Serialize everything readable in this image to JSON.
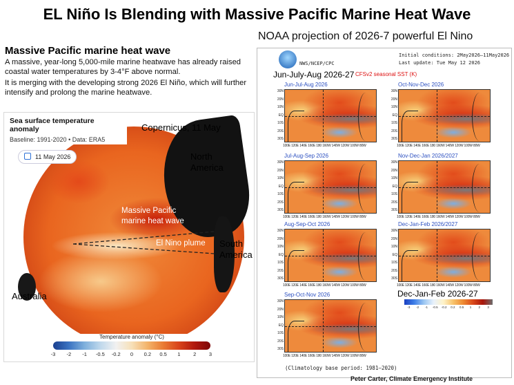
{
  "title": "EL Niño Is Blending  with Massive Pacific Marine Heat Wave",
  "noaa_heading": "NOAA projection of 2026-7 powerful  El Nino",
  "left": {
    "heading": "Massive Pacific marine heat wave",
    "para1": "A massive, year-long 5,000-mile  marine heatwave has already raised coastal water temperatures by 3-4°F above normal.",
    "para2": "It is merging with the developing strong 2026 El Niño, which will further intensify and prolong the marine heatwave."
  },
  "copernicus": {
    "legend_title": "Sea surface temperature anomaly",
    "legend_sub": "Baseline: 1991-2020 • Data: ERA5",
    "date_chip": "11 May 2026",
    "source_label": "Copernicus, 11 May",
    "labels": {
      "north_america": "North\nAmerica",
      "massive_pacific": "Massive Pacific\nmarine heat wave",
      "plume": "El Nino plume",
      "south_america": "South\nAmerica",
      "australia": "Australia"
    },
    "colorbar": {
      "title": "Temperature anomaly (°C)",
      "ticks": [
        "-3",
        "-2",
        "-1",
        "-0.5",
        "-0.2",
        "0",
        "0.2",
        "0.5",
        "1",
        "2",
        "3"
      ]
    }
  },
  "noaa": {
    "org": "NWS/NCEP/CPC",
    "initial_conditions": "Initial conditions: 2May2026–11May2026",
    "last_update": "Last update: Tue May 12 2026",
    "main_season": "Jun-July-Aug  2026-27",
    "model_label": "CFSv2 seasonal SST (K)",
    "y_ticks": [
      "30N",
      "20N",
      "10N",
      "EQ",
      "10S",
      "20S",
      "30S"
    ],
    "x_ticks": "100E 120E 140E 160E 180 160W 140W 120W 100W 80W",
    "maps": [
      {
        "title": "Jun-Jul-Aug 2026"
      },
      {
        "title": "Oct-Nov-Dec 2026"
      },
      {
        "title": "Jul-Aug-Sep 2026"
      },
      {
        "title": "Nov-Dec-Jan 2026/2027"
      },
      {
        "title": "Aug-Sep-Oct 2026"
      },
      {
        "title": "Dec-Jan-Feb 2026/2027"
      },
      {
        "title": "Sep-Oct-Nov 2026"
      }
    ],
    "djf_label": "Dec-Jan-Feb 2026-27",
    "cbar_ticks": [
      "-3",
      "-2",
      "-1",
      "-0.5",
      "-0.2",
      "0.2",
      "0.5",
      "1",
      "2",
      "3"
    ],
    "climatology": "(Climatology base period: 1981–2020)"
  },
  "credit": "Peter Carter, Climate Emergency Institute"
}
